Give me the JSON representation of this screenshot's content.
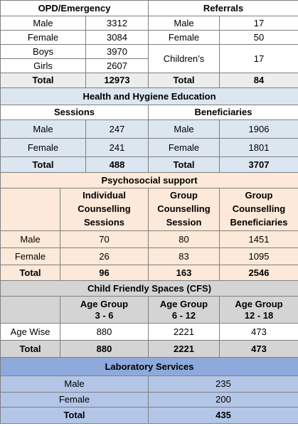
{
  "opd": {
    "title": "OPD/Emergency",
    "rows": [
      {
        "label": "Male",
        "value": "3312"
      },
      {
        "label": "Female",
        "value": "3084"
      },
      {
        "label": "Boys",
        "value": "3970"
      },
      {
        "label": "Girls",
        "value": "2607"
      }
    ],
    "total_label": "Total",
    "total_value": "12973"
  },
  "referrals": {
    "title": "Referrals",
    "rows": [
      {
        "label": "Male",
        "value": "17"
      },
      {
        "label": "Female",
        "value": "50"
      },
      {
        "label": "Children’s",
        "value": "17"
      }
    ],
    "total_label": "Total",
    "total_value": "84"
  },
  "hygiene": {
    "title": "Health and Hygiene Education",
    "sessions_header": "Sessions",
    "beneficiaries_header": "Beneficiaries",
    "rows": [
      {
        "label": "Male",
        "sessions": "247",
        "ben_label": "Male",
        "beneficiaries": "1906"
      },
      {
        "label": "Female",
        "sessions": "241",
        "ben_label": "Female",
        "beneficiaries": "1801"
      }
    ],
    "total_label": "Total",
    "total_sessions": "488",
    "total_ben_label": "Total",
    "total_beneficiaries": "3707"
  },
  "psychosocial": {
    "title": "Psychosocial support",
    "headers": [
      "Individual Counselling Sessions",
      "Group Counselling Session",
      "Group Counselling Beneficiaries"
    ],
    "rows": [
      {
        "label": "Male",
        "values": [
          "70",
          "80",
          "1451"
        ]
      },
      {
        "label": "Female",
        "values": [
          "26",
          "83",
          "1095"
        ]
      }
    ],
    "total_label": "Total",
    "total_values": [
      "96",
      "163",
      "2546"
    ]
  },
  "cfs": {
    "title": "Child Friendly Spaces (CFS)",
    "headers": [
      {
        "line1": "Age Group",
        "line2": "3 - 6"
      },
      {
        "line1": "Age Group",
        "line2": "6 - 12"
      },
      {
        "line1": "Age Group",
        "line2": "12 - 18"
      }
    ],
    "row_label": "Age Wise",
    "row_values": [
      "880",
      "2221",
      "473"
    ],
    "total_label": "Total",
    "total_values": [
      "880",
      "2221",
      "473"
    ]
  },
  "lab": {
    "title": "Laboratory Services",
    "rows": [
      {
        "label": "Male",
        "value": "235"
      },
      {
        "label": "Female",
        "value": "200"
      }
    ],
    "total_label": "Total",
    "total_value": "435"
  }
}
